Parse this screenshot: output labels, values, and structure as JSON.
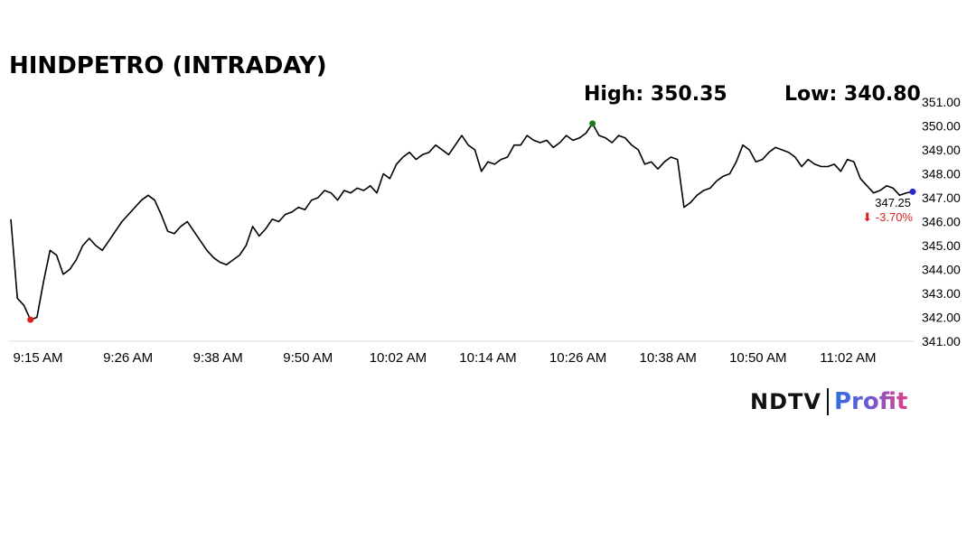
{
  "header": {
    "title": "HINDPETRO (INTRADAY)",
    "high_label": "High: 350.35",
    "low_label": "Low: 340.80"
  },
  "brand": {
    "left": "NDTV",
    "right": "Profit"
  },
  "colors": {
    "line": "#000000",
    "high_marker": "#1a7a1a",
    "low_marker": "#e02020",
    "last_marker": "#2a2acc",
    "change": "#e02020"
  },
  "chart_data": {
    "type": "line",
    "title": "HINDPETRO (INTRADAY)",
    "xlabel": "",
    "ylabel": "",
    "x_ticks": [
      "9:15 AM",
      "9:26 AM",
      "9:38 AM",
      "9:50 AM",
      "10:02 AM",
      "10:14 AM",
      "10:26 AM",
      "10:38 AM",
      "10:50 AM",
      "11:02 AM"
    ],
    "y_ticks": [
      "341.00",
      "342.00",
      "343.00",
      "344.00",
      "345.00",
      "346.00",
      "347.00",
      "348.00",
      "349.00",
      "350.00",
      "351.00"
    ],
    "ylim": [
      341,
      351
    ],
    "grid": false,
    "series": [
      {
        "values": [
          346.1,
          342.8,
          342.5,
          341.9,
          342.0,
          343.5,
          344.8,
          344.6,
          343.8,
          344.0,
          344.4,
          345.0,
          345.3,
          345.0,
          344.8,
          345.2,
          345.6,
          346.0,
          346.3,
          346.6,
          346.9,
          347.1,
          346.9,
          346.3,
          345.6,
          345.5,
          345.8,
          346.0,
          345.6,
          345.2,
          344.8,
          344.5,
          344.3,
          344.2,
          344.4,
          344.6,
          345.0,
          345.8,
          345.4,
          345.7,
          346.1,
          346.0,
          346.3,
          346.4,
          346.6,
          346.5,
          346.9,
          347.0,
          347.3,
          347.2,
          346.9,
          347.3,
          347.2,
          347.4,
          347.3,
          347.5,
          347.2,
          348.0,
          347.8,
          348.4,
          348.7,
          348.9,
          348.6,
          348.8,
          348.9,
          349.2,
          349.0,
          348.8,
          349.2,
          349.6,
          349.2,
          349.0,
          348.1,
          348.5,
          348.4,
          348.6,
          348.7,
          349.2,
          349.2,
          349.6,
          349.4,
          349.3,
          349.4,
          349.1,
          349.3,
          349.6,
          349.4,
          349.5,
          349.7,
          350.1,
          349.6,
          349.5,
          349.3,
          349.6,
          349.5,
          349.2,
          349.0,
          348.4,
          348.5,
          348.2,
          348.5,
          348.7,
          348.6,
          346.6,
          346.8,
          347.1,
          347.3,
          347.4,
          347.7,
          347.9,
          348.0,
          348.5,
          349.2,
          349.0,
          348.5,
          348.6,
          348.9,
          349.1,
          349.0,
          348.9,
          348.7,
          348.3,
          348.6,
          348.4,
          348.3,
          348.3,
          348.4,
          348.1,
          348.6,
          348.5,
          347.8,
          347.5,
          347.2,
          347.3,
          347.5,
          347.4,
          347.1,
          347.2,
          347.25
        ]
      }
    ],
    "high": 350.35,
    "low": 340.8,
    "last": 347.25,
    "last_label": "347.25",
    "change_label": "⬇ -3.70%"
  }
}
